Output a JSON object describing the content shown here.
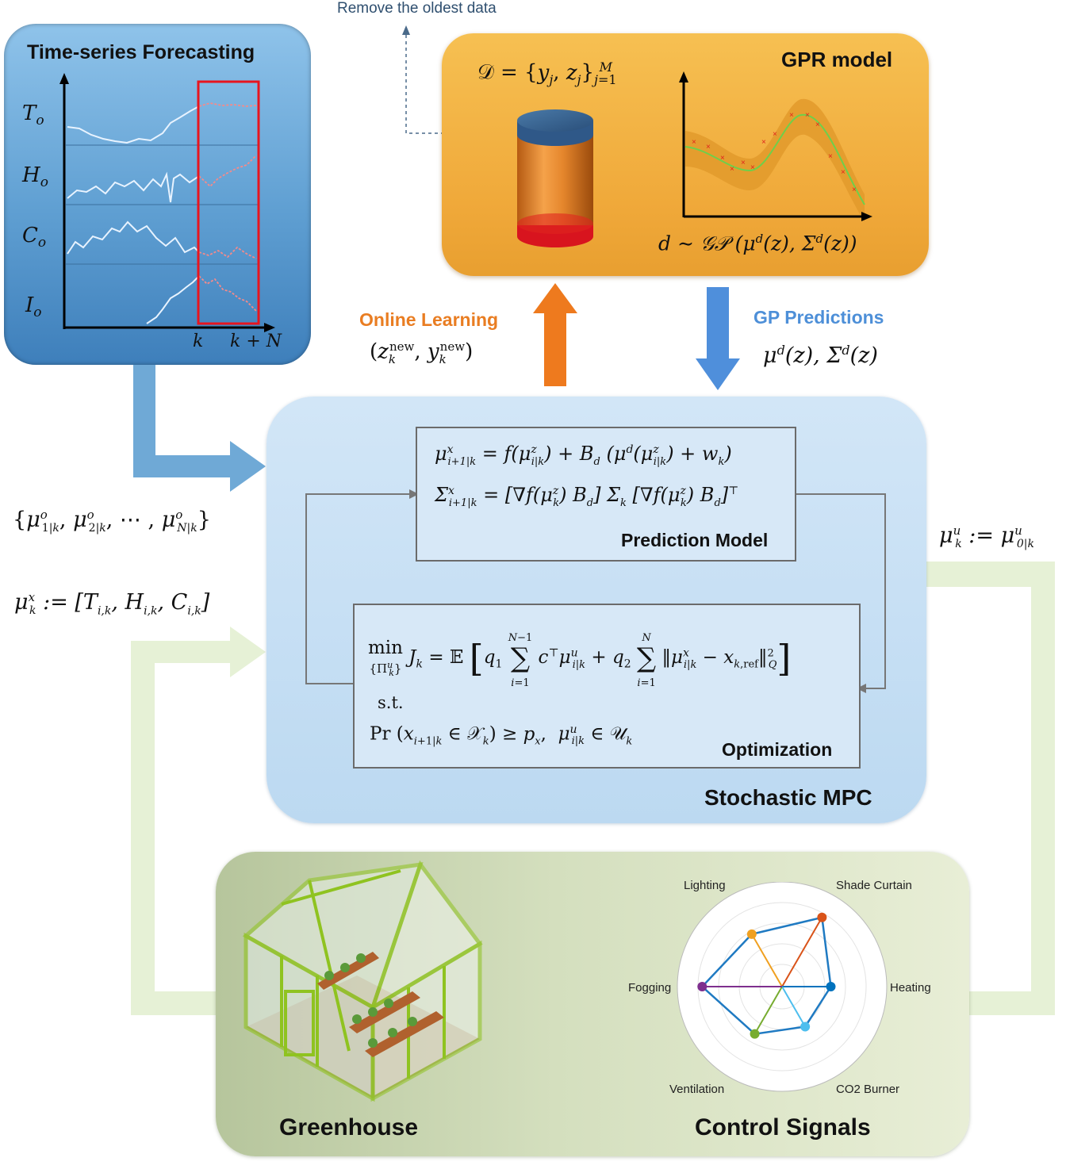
{
  "remove_label": "Remove the oldest data",
  "ts_panel": {
    "title": "Time-series Forecasting",
    "var_labels": [
      "T_o",
      "H_o",
      "C_o",
      "I_o"
    ],
    "axis_k": "k",
    "axis_kN": "k + N"
  },
  "gpr_panel": {
    "title": "GPR model",
    "dataset": "𝒟 = {y_j, z_j}_{j=1}^M",
    "gp": "d ∼ 𝒢𝒫 (μ^d(z), Σ^d(z))"
  },
  "online_learning": {
    "label": "Online Learning",
    "math": "(z_k^new, y_k^new)"
  },
  "gp_predictions": {
    "label": "GP Predictions",
    "math": "μ^d(z), Σ^d(z)"
  },
  "left_math": {
    "forecast_set": "{μ^o_{1|k}, μ^o_{2|k}, ⋯ , μ^o_{N|k}}",
    "state": "μ^x_k := [T_{i,k}, H_{i,k}, C_{i,k}]"
  },
  "right_math": {
    "control": "μ^u_k := μ^u_{0|k}"
  },
  "prediction_model": {
    "title": "Prediction Model",
    "eq1": "μ^x_{i+1|k} = f(μ^z_{i|k}) + B_d (μ^d(μ^z_{i|k}) + w_k)",
    "eq2": "Σ^x_{i+1|k} = [∇f(μ^z_k) B_d] Σ_k [∇f(μ^z_k) B_d]^⊤"
  },
  "optimization": {
    "title": "Optimization",
    "objective": "min_{Π^u_k} J_k = 𝔼 [ q₁ Σ_{i=1}^{N−1} c^⊤ μ^u_{i|k} + q₂ Σ_{i=1}^{N} ‖μ^x_{i|k} − x_{k,ref}‖²_Q ]",
    "st": "s.t.",
    "constraint": "Pr (x_{i+1|k} ∈ 𝒳_k) ≥ p_x,  μ^u_{i|k} ∈ 𝒰_k"
  },
  "mpc_title": "Stochastic MPC",
  "greenhouse_title": "Greenhouse",
  "control_title": "Control Signals",
  "radar": {
    "axes": [
      "Lighting",
      "Shade Curtain",
      "Heating",
      "CO2 Burner",
      "Ventilation",
      "Fogging"
    ],
    "values": [
      0.72,
      0.95,
      0.58,
      0.55,
      0.65,
      0.95
    ],
    "colors": [
      "#f0a020",
      "#d95319",
      "#0072bd",
      "#4dbeee",
      "#77ac30",
      "#7e2f8e"
    ]
  }
}
